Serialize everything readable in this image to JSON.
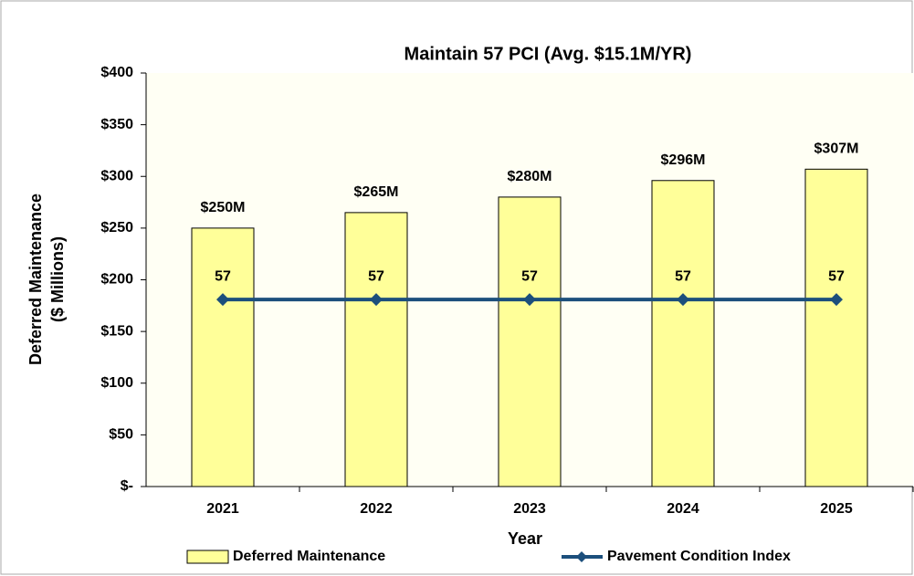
{
  "chart_data": {
    "type": "combo",
    "title": "Maintain 57 PCI (Avg. $15.1M/YR)",
    "y_label": [
      "Deferred Maintenance",
      "($ Millions)"
    ],
    "x_label": "Year",
    "categories": [
      "2021",
      "2022",
      "2023",
      "2024",
      "2025"
    ],
    "series": [
      {
        "name": "Deferred Maintenance",
        "type": "bar",
        "color": "#ffff99",
        "values": [
          250,
          265,
          280,
          296,
          307
        ],
        "value_labels": [
          "$250M",
          "$265M",
          "$280M",
          "$296M",
          "$307M"
        ]
      },
      {
        "name": "Pavement Condition Index",
        "type": "line",
        "color": "#1c4f7c",
        "axis": "y2",
        "values": [
          57,
          57,
          57,
          57,
          57
        ]
      }
    ],
    "ylim": [
      0,
      400
    ],
    "yticks": [
      {
        "value": 0,
        "label": "$-"
      },
      {
        "value": 50,
        "label": "$50"
      },
      {
        "value": 100,
        "label": "$100"
      },
      {
        "value": 150,
        "label": "$150"
      },
      {
        "value": 200,
        "label": "$200"
      },
      {
        "value": 250,
        "label": "$250"
      },
      {
        "value": 300,
        "label": "$300"
      },
      {
        "value": 350,
        "label": "$350"
      },
      {
        "value": 400,
        "label": "$400"
      }
    ],
    "y2lim": [
      0,
      126
    ],
    "grid": false
  }
}
